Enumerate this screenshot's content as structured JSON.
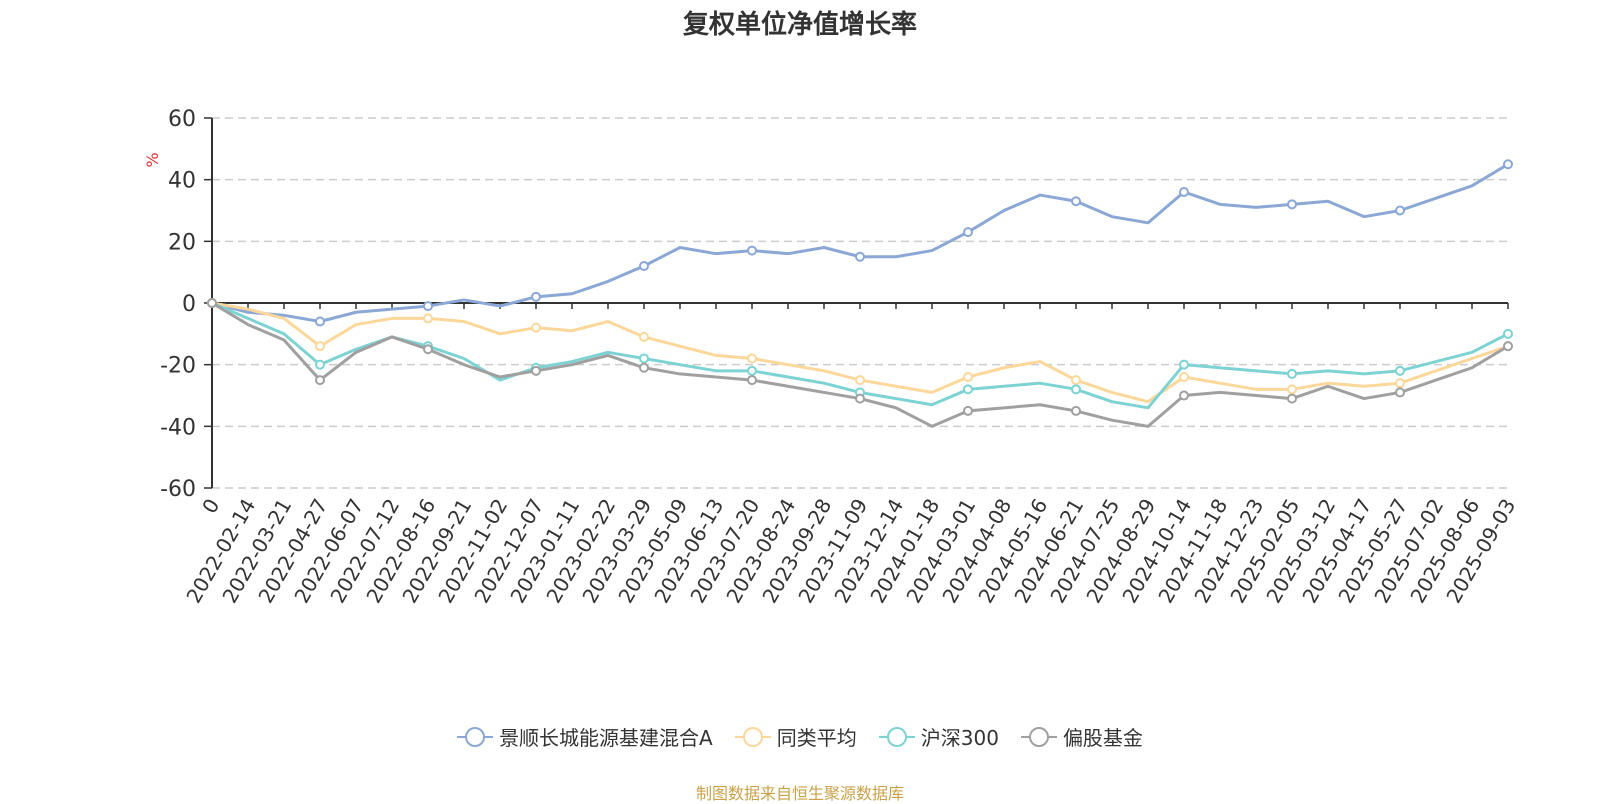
{
  "title": "复权单位净值增长率",
  "source": "制图数据来自恒生聚源数据库",
  "colors": {
    "fund": "#8aa7d6",
    "peer": "#fcd79a",
    "hs300": "#7dd3d3",
    "equity": "#a0a0a0"
  },
  "chart_data": {
    "type": "line",
    "title": "复权单位净值增长率",
    "ylabel": "%",
    "ylim": [
      -60,
      60
    ],
    "yticks": [
      60,
      40,
      20,
      0,
      -20,
      -40,
      -60
    ],
    "grid": true,
    "legend_position": "bottom",
    "categories": [
      "0",
      "2022-02-14",
      "2022-03-21",
      "2022-04-27",
      "2022-06-07",
      "2022-07-12",
      "2022-08-16",
      "2022-09-21",
      "2022-11-02",
      "2022-12-07",
      "2023-01-11",
      "2023-02-22",
      "2023-03-29",
      "2023-05-09",
      "2023-06-13",
      "2023-07-20",
      "2023-08-24",
      "2023-09-28",
      "2023-11-09",
      "2023-12-14",
      "2024-01-18",
      "2024-03-01",
      "2024-04-08",
      "2024-05-16",
      "2024-06-21",
      "2024-07-25",
      "2024-08-29",
      "2024-10-14",
      "2024-11-18",
      "2024-12-23",
      "2025-02-05",
      "2025-03-12",
      "2025-04-17",
      "2025-05-27",
      "2025-07-02",
      "2025-08-06",
      "2025-09-03"
    ],
    "series": [
      {
        "name": "景顺长城能源基建混合A",
        "key": "fund",
        "values": [
          0,
          -3,
          -4,
          -6,
          -3,
          -2,
          -1,
          1,
          -1,
          2,
          3,
          7,
          12,
          18,
          16,
          17,
          16,
          18,
          15,
          15,
          17,
          23,
          30,
          35,
          33,
          28,
          26,
          36,
          32,
          31,
          32,
          33,
          28,
          30,
          34,
          38,
          45
        ]
      },
      {
        "name": "同类平均",
        "key": "peer",
        "values": [
          0,
          -2,
          -5,
          -14,
          -7,
          -5,
          -5,
          -6,
          -10,
          -8,
          -9,
          -6,
          -11,
          -14,
          -17,
          -18,
          -20,
          -22,
          -25,
          -27,
          -29,
          -24,
          -21,
          -19,
          -25,
          -29,
          -32,
          -24,
          -26,
          -28,
          -28,
          -26,
          -27,
          -26,
          -22,
          -18,
          -14
        ]
      },
      {
        "name": "沪深300",
        "key": "hs300",
        "values": [
          0,
          -5,
          -10,
          -20,
          -15,
          -11,
          -14,
          -18,
          -25,
          -21,
          -19,
          -16,
          -18,
          -20,
          -22,
          -22,
          -24,
          -26,
          -29,
          -31,
          -33,
          -28,
          -27,
          -26,
          -28,
          -32,
          -34,
          -20,
          -21,
          -22,
          -23,
          -22,
          -23,
          -22,
          -19,
          -16,
          -10
        ]
      },
      {
        "name": "偏股基金",
        "key": "equity",
        "values": [
          0,
          -7,
          -12,
          -25,
          -16,
          -11,
          -15,
          -20,
          -24,
          -22,
          -20,
          -17,
          -21,
          -23,
          -24,
          -25,
          -27,
          -29,
          -31,
          -34,
          -40,
          -35,
          -34,
          -33,
          -35,
          -38,
          -40,
          -30,
          -29,
          -30,
          -31,
          -27,
          -31,
          -29,
          -25,
          -21,
          -14
        ]
      }
    ]
  }
}
